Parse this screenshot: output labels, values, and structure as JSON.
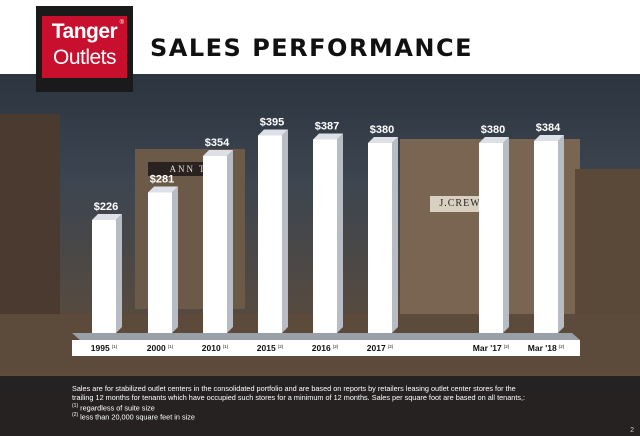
{
  "header": {
    "logo_line1": "Tanger",
    "logo_line2": "Outlets",
    "logo_reg": "®",
    "title": "SALES PERFORMANCE"
  },
  "chart_data": {
    "type": "bar",
    "categories": [
      "1995",
      "2000",
      "2010",
      "2015",
      "2016",
      "2017",
      "Mar '17",
      "Mar '18"
    ],
    "footnote_refs": [
      "(1)",
      "(1)",
      "(1)",
      "(2)",
      "(2)",
      "(2)",
      "(2)",
      "(2)"
    ],
    "values": [
      226,
      281,
      354,
      395,
      387,
      380,
      380,
      384
    ],
    "value_labels": [
      "$226",
      "$281",
      "$354",
      "$395",
      "$387",
      "$380",
      "$380",
      "$384"
    ],
    "title": "",
    "xlabel": "",
    "ylabel": "",
    "ylim": [
      0,
      420
    ],
    "grid": false
  },
  "footer": {
    "note_line1": "Sales are for stabilized outlet centers in the consolidated portfolio and are based on reports by retailers leasing outlet center stores for the",
    "note_line2": "trailing 12 months for tenants which have occupied such stores for a minimum of 12 months. Sales per square foot are based on all tenants,:",
    "fn1_mark": "(1)",
    "fn1_text": " regardless of suite size",
    "fn2_mark": "(2)",
    "fn2_text": " less than 20,000 square feet in size",
    "page_number": "2"
  },
  "background": {
    "store_sign_1": "ANN T",
    "store_sign_2": "J.CREW"
  },
  "colors": {
    "brand_red": "#c8102e",
    "bar_face": "#ffffff",
    "bar_side": "#b8bcc4",
    "bar_top": "#dde0e6"
  }
}
